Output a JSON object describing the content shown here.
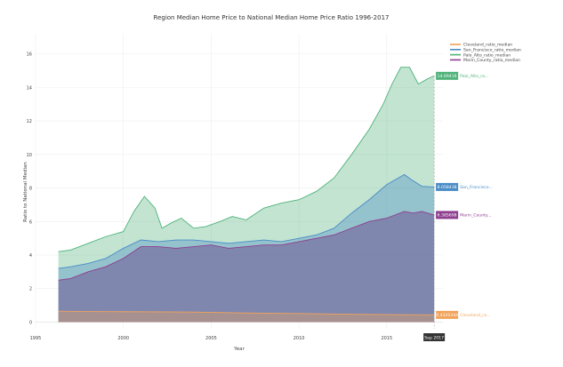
{
  "chart_data": {
    "type": "area",
    "title": "Region Median Home Price to National Median Home Price Ratio 1996-2017",
    "xlabel": "Year",
    "ylabel": "Ratio to National Median",
    "xlim": [
      1995,
      2018.2
    ],
    "ylim": [
      -0.4,
      17.2
    ],
    "x_ticks": [
      "1995",
      "2000",
      "2005",
      "2010",
      "2015"
    ],
    "y_ticks": [
      "0",
      "2",
      "4",
      "6",
      "8",
      "10",
      "12",
      "14",
      "16"
    ],
    "grid": true,
    "legend_position": "top-right",
    "hover_x_label": "Sep 2017",
    "series": [
      {
        "name": "Cleveland_ratio_median",
        "color": "#f0a25a",
        "fill": "rgba(240,162,90,0.35)",
        "end_label": "0.4320344",
        "end_name": "Cleveland_ra...",
        "points": [
          [
            1996.3,
            0.65
          ],
          [
            1998,
            0.63
          ],
          [
            2000,
            0.62
          ],
          [
            2002,
            0.61
          ],
          [
            2004,
            0.6
          ],
          [
            2006,
            0.56
          ],
          [
            2008,
            0.53
          ],
          [
            2010,
            0.51
          ],
          [
            2012,
            0.48
          ],
          [
            2014,
            0.46
          ],
          [
            2016,
            0.44
          ],
          [
            2017.7,
            0.43
          ]
        ]
      },
      {
        "name": "San_Francisco_ratio_median",
        "color": "#4a8cc7",
        "fill": "rgba(74,140,199,0.38)",
        "end_label": "8.058438",
        "end_name": "San_Francisco...",
        "points": [
          [
            1996.3,
            3.2
          ],
          [
            1997,
            3.3
          ],
          [
            1998,
            3.5
          ],
          [
            1999,
            3.8
          ],
          [
            2000,
            4.4
          ],
          [
            2001,
            4.9
          ],
          [
            2002,
            4.8
          ],
          [
            2003,
            4.9
          ],
          [
            2004,
            4.9
          ],
          [
            2005,
            4.8
          ],
          [
            2006,
            4.7
          ],
          [
            2007,
            4.8
          ],
          [
            2008,
            4.9
          ],
          [
            2009,
            4.8
          ],
          [
            2010,
            5.0
          ],
          [
            2011,
            5.2
          ],
          [
            2012,
            5.6
          ],
          [
            2013,
            6.5
          ],
          [
            2014,
            7.3
          ],
          [
            2015,
            8.2
          ],
          [
            2016,
            8.8
          ],
          [
            2016.4,
            8.5
          ],
          [
            2017,
            8.1
          ],
          [
            2017.7,
            8.06
          ]
        ]
      },
      {
        "name": "Palo_Alto_ratio_median",
        "color": "#4fb37a",
        "fill": "rgba(79,179,122,0.35)",
        "end_label": "14.69416",
        "end_name": "Palo_Alto_ra...",
        "points": [
          [
            1996.3,
            4.2
          ],
          [
            1997,
            4.3
          ],
          [
            1998,
            4.7
          ],
          [
            1999,
            5.1
          ],
          [
            2000,
            5.4
          ],
          [
            2000.6,
            6.6
          ],
          [
            2001.2,
            7.5
          ],
          [
            2001.8,
            6.8
          ],
          [
            2002.2,
            5.6
          ],
          [
            2002.7,
            5.9
          ],
          [
            2003.3,
            6.2
          ],
          [
            2004,
            5.6
          ],
          [
            2004.7,
            5.7
          ],
          [
            2005.5,
            6.0
          ],
          [
            2006.2,
            6.3
          ],
          [
            2007,
            6.1
          ],
          [
            2008,
            6.8
          ],
          [
            2009,
            7.1
          ],
          [
            2010,
            7.3
          ],
          [
            2011,
            7.8
          ],
          [
            2012,
            8.6
          ],
          [
            2013,
            10.0
          ],
          [
            2014,
            11.5
          ],
          [
            2014.8,
            13.0
          ],
          [
            2015.3,
            14.2
          ],
          [
            2015.8,
            15.2
          ],
          [
            2016.3,
            15.2
          ],
          [
            2016.8,
            14.2
          ],
          [
            2017.3,
            14.5
          ],
          [
            2017.7,
            14.69
          ]
        ]
      },
      {
        "name": "Marin_County_ratio_median",
        "color": "#8e3d8f",
        "fill": "rgba(112,88,150,0.55)",
        "end_label": "6.385698",
        "end_name": "Marin_County...",
        "points": [
          [
            1996.3,
            2.5
          ],
          [
            1997,
            2.6
          ],
          [
            1998,
            3.0
          ],
          [
            1999,
            3.3
          ],
          [
            2000,
            3.8
          ],
          [
            2001,
            4.5
          ],
          [
            2002,
            4.5
          ],
          [
            2003,
            4.4
          ],
          [
            2004,
            4.5
          ],
          [
            2005,
            4.6
          ],
          [
            2006,
            4.4
          ],
          [
            2007,
            4.5
          ],
          [
            2008,
            4.6
          ],
          [
            2009,
            4.6
          ],
          [
            2010,
            4.8
          ],
          [
            2011,
            5.0
          ],
          [
            2012,
            5.2
          ],
          [
            2013,
            5.6
          ],
          [
            2014,
            6.0
          ],
          [
            2015,
            6.2
          ],
          [
            2016,
            6.6
          ],
          [
            2016.5,
            6.5
          ],
          [
            2017,
            6.6
          ],
          [
            2017.7,
            6.39
          ]
        ]
      }
    ]
  }
}
